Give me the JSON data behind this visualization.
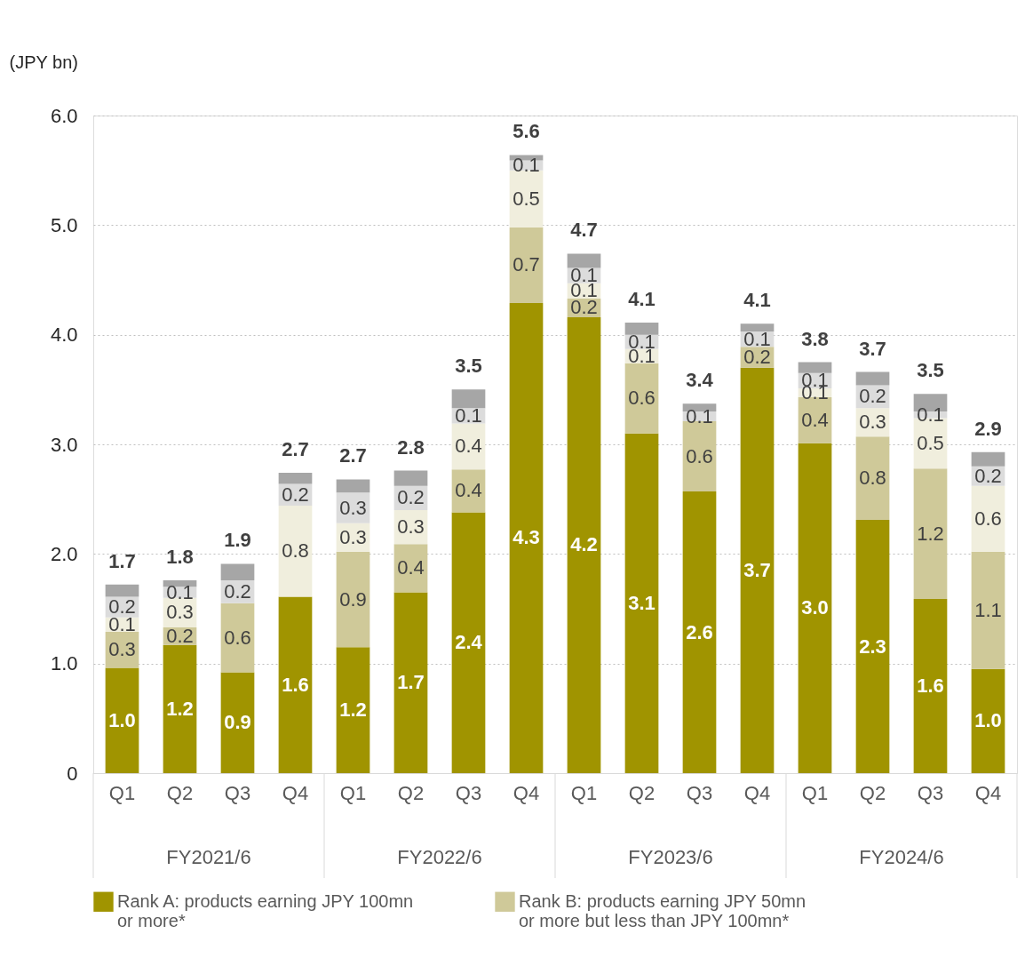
{
  "chart_data": {
    "type": "bar",
    "stacked": true,
    "ylabel": "(JPY bn)",
    "categories": [
      "Q1",
      "Q2",
      "Q3",
      "Q4",
      "Q1",
      "Q2",
      "Q3",
      "Q4",
      "Q1",
      "Q2",
      "Q3",
      "Q4",
      "Q1",
      "Q2",
      "Q3",
      "Q4"
    ],
    "annotations": [
      "FY2021/6",
      "FY2022/6",
      "FY2023/6",
      "FY2024/6"
    ],
    "ylim": [
      0,
      6
    ],
    "yticks": [
      0,
      {
        "value": 1,
        "label": "1.0"
      },
      {
        "value": 2,
        "label": "2.0"
      },
      {
        "value": 3,
        "label": "3.0"
      },
      {
        "value": 4,
        "label": "4.0"
      },
      {
        "value": 5,
        "label": "5.0"
      },
      {
        "value": 6,
        "label": "6.0"
      }
    ],
    "grid": "y",
    "legend": "bottom",
    "series": [
      {
        "name": "Rank A: products earning JPY 100mn or more*",
        "color": "#a09400",
        "values": [
          0.96,
          1.17,
          0.92,
          1.61,
          1.15,
          1.65,
          2.38,
          4.29,
          4.16,
          3.1,
          2.57,
          3.7,
          3.01,
          2.31,
          1.59,
          0.95
        ],
        "value_labels": [
          "1.0",
          "1.2",
          "0.9",
          "1.6",
          "1.2",
          "1.7",
          "2.4",
          "4.3",
          "4.2",
          "3.1",
          "2.6",
          "3.7",
          "3.0",
          "2.3",
          "1.6",
          "1.0"
        ]
      },
      {
        "name": "Rank B: products earning JPY 50mn or more but less than JPY 100mn*",
        "color": "#cfc999",
        "values": [
          0.33,
          0.16,
          0.63,
          0,
          0.87,
          0.44,
          0.39,
          0.69,
          0.17,
          0.64,
          0.64,
          0.19,
          0.42,
          0.76,
          1.19,
          1.07
        ],
        "value_labels": [
          "0.3",
          "0.2",
          "0.6",
          null,
          "0.9",
          "0.4",
          "0.4",
          "0.7",
          "0.2",
          "0.6",
          "0.6",
          "0.2",
          "0.4",
          "0.8",
          "1.2",
          "1.1"
        ]
      },
      {
        "color": "#f0eedd",
        "values": [
          0.13,
          0.27,
          0,
          0.83,
          0.26,
          0.31,
          0.42,
          0.52,
          0.14,
          0.13,
          0,
          0,
          0.08,
          0.26,
          0.46,
          0.6
        ],
        "value_labels": [
          "0.1",
          "0.3",
          null,
          "0.8",
          "0.3",
          "0.3",
          "0.4",
          "0.5",
          "0.1",
          "0.1",
          null,
          null,
          "0.1",
          "0.3",
          "0.5",
          "0.6"
        ]
      },
      {
        "color": "#dcdcdc",
        "values": [
          0.19,
          0.1,
          0.21,
          0.2,
          0.28,
          0.22,
          0.14,
          0.09,
          0.14,
          0.13,
          0.09,
          0.14,
          0.14,
          0.21,
          0.06,
          0.18
        ],
        "value_labels": [
          "0.2",
          "0.1",
          "0.2",
          "0.2",
          "0.3",
          "0.2",
          "0.1",
          "0.1",
          "0.1",
          "0.1",
          "0.1",
          "0.1",
          "0.1",
          "0.2",
          "0.1",
          "0.2"
        ]
      },
      {
        "color": "#a6a6a6",
        "values": [
          0.11,
          0.06,
          0.15,
          0.1,
          0.12,
          0.14,
          0.17,
          0.05,
          0.13,
          0.11,
          0.07,
          0.07,
          0.1,
          0.12,
          0.16,
          0.13
        ]
      }
    ],
    "totals": [
      "1.7",
      "1.8",
      "1.9",
      "2.7",
      "2.7",
      "2.8",
      "3.5",
      "5.6",
      "4.7",
      "4.1",
      "3.4",
      "4.1",
      "3.8",
      "3.7",
      "3.5",
      "2.9"
    ]
  }
}
